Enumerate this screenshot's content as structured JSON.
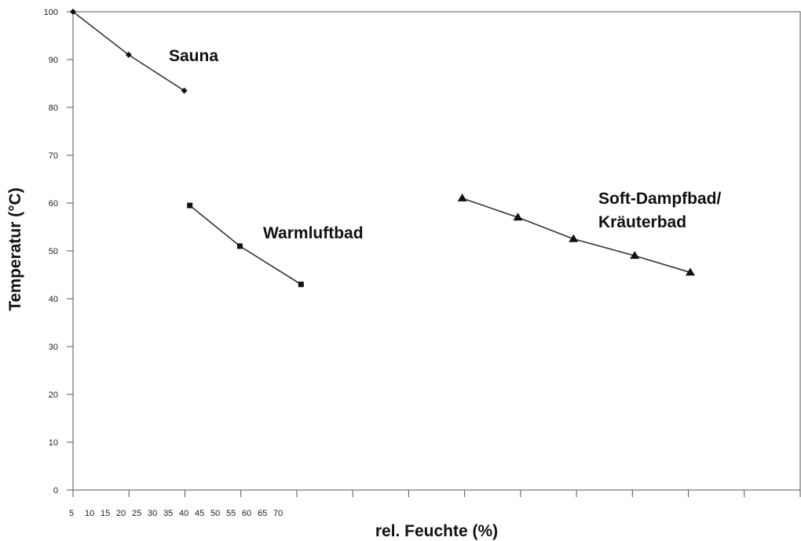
{
  "chart_data": {
    "type": "line",
    "title": "",
    "xlabel": "rel. Feuchte (%)",
    "ylabel": "Temperatur (°C)",
    "ylim": [
      0,
      100
    ],
    "y_ticks": [
      0,
      10,
      20,
      30,
      40,
      50,
      60,
      70,
      80,
      90,
      100
    ],
    "x_tick_labels": [
      "5",
      "10",
      "15",
      "20",
      "25",
      "30",
      "35",
      "40",
      "45",
      "50",
      "55",
      "60",
      "65",
      "70"
    ],
    "grid": false,
    "colors": {
      "line": "#333333",
      "marker": "#111111",
      "frame": "#555555"
    },
    "series": [
      {
        "name": "Sauna",
        "marker": "diamond",
        "label_lines": [
          "Sauna"
        ],
        "points": [
          [
            5,
            100
          ],
          [
            10,
            91
          ],
          [
            15,
            83.5
          ]
        ]
      },
      {
        "name": "Warmluftbad",
        "marker": "square",
        "label_lines": [
          "Warmluftbad"
        ],
        "points": [
          [
            15.5,
            59.5
          ],
          [
            20,
            51
          ],
          [
            25.5,
            43
          ]
        ]
      },
      {
        "name": "Soft-Dampfbad/ Kräuterbad",
        "marker": "triangle",
        "label_lines": [
          "Soft-Dampfbad/",
          "Kräuterbad"
        ],
        "points": [
          [
            40,
            61
          ],
          [
            45,
            57
          ],
          [
            50,
            52.5
          ],
          [
            55.5,
            49
          ],
          [
            60.5,
            45.5
          ]
        ]
      }
    ]
  }
}
